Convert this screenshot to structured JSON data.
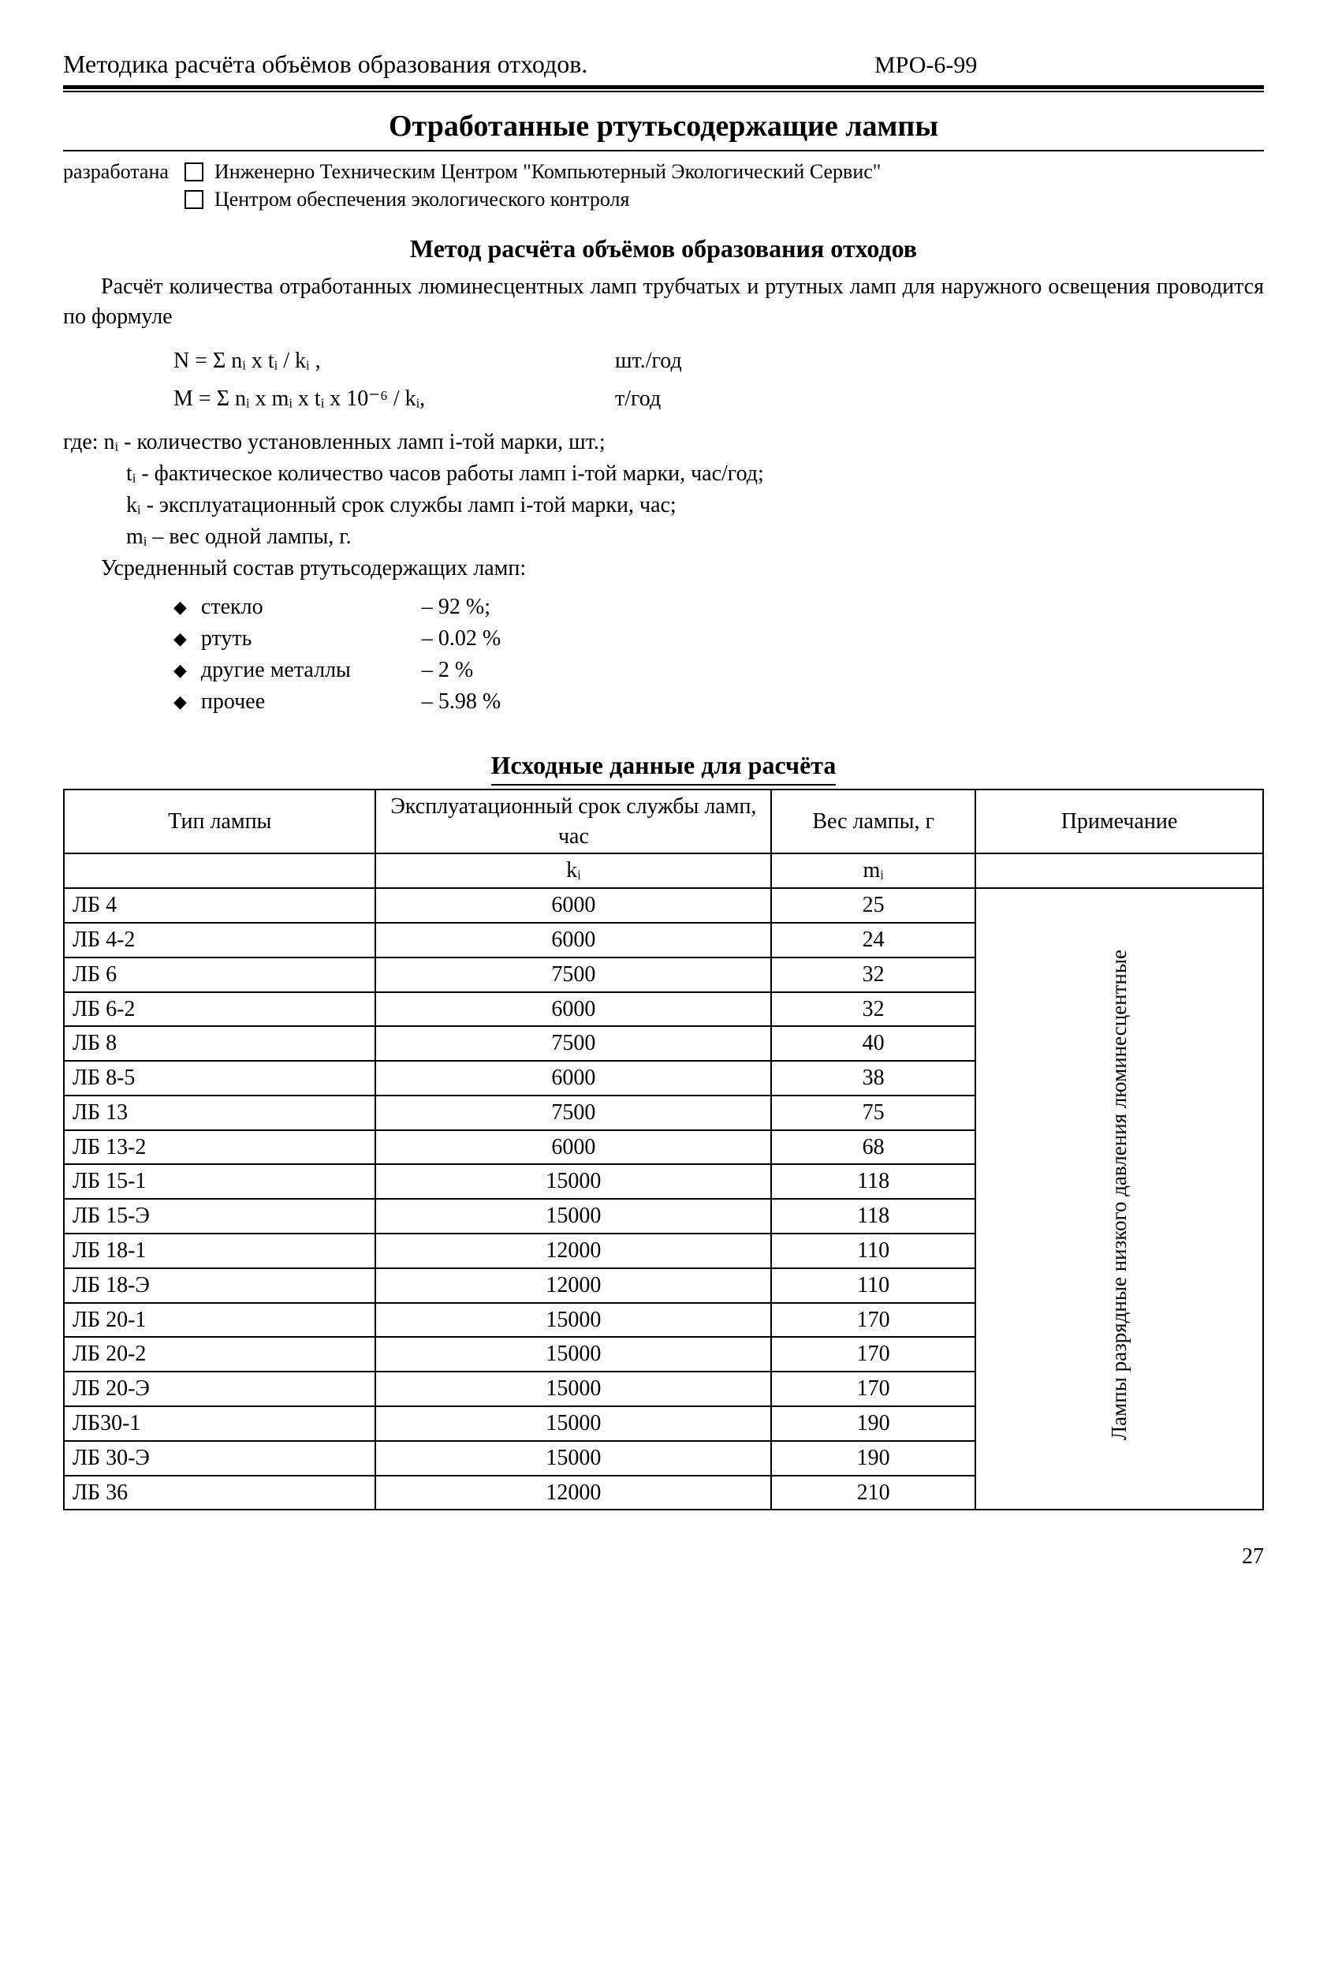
{
  "header": {
    "left": "Методика расчёта объёмов образования отходов.",
    "right": "МРО-6-99"
  },
  "title": "Отработанные ртутьсодержащие лампы",
  "developed": {
    "label": "разработана",
    "items": [
      "Инженерно Техническим Центром \"Компьютерный Экологический Сервис\"",
      "Центром обеспечения экологического контроля"
    ]
  },
  "method": {
    "title": "Метод расчёта объёмов образования отходов",
    "intro": "Расчёт количества отработанных люминесцентных ламп трубчатых и ртутных ламп для наружного освещения проводится по формуле",
    "formulas": [
      {
        "expr": "N = Σ nᵢ x tᵢ / kᵢ ,",
        "unit": "шт./год"
      },
      {
        "expr": "M = Σ nᵢ x mᵢ x tᵢ x 10⁻⁶ / kᵢ,",
        "unit": "т/год"
      }
    ],
    "where_lead": "где: nᵢ - количество установленных ламп i-той марки, шт.;",
    "where_lines": [
      "tᵢ - фактическое количество часов работы ламп i-той марки, час/год;",
      "kᵢ - эксплуатационный срок службы ламп i-той марки, час;",
      "mᵢ – вес одной лампы, г."
    ],
    "avg_lead": "Усредненный состав ртутьсодержащих ламп:",
    "composition": [
      {
        "name": "стекло",
        "val": "– 92 %;"
      },
      {
        "name": "ртуть",
        "val": "– 0.02 %"
      },
      {
        "name": "другие металлы",
        "val": "– 2 %"
      },
      {
        "name": "прочее",
        "val": "– 5.98 %"
      }
    ]
  },
  "table": {
    "title": "Исходные данные для расчёта",
    "headers": {
      "type": "Тип лампы",
      "life": "Эксплуатационный срок службы ламп, час",
      "weight": "Вес лампы, г",
      "note": "Примечание"
    },
    "symbols": {
      "life": "kᵢ",
      "weight": "mᵢ"
    },
    "note_text": "Лампы разрядные низкого давления люминесцентные",
    "rows": [
      {
        "type": "ЛБ 4",
        "life": "6000",
        "weight": "25"
      },
      {
        "type": "ЛБ 4-2",
        "life": "6000",
        "weight": "24"
      },
      {
        "type": "ЛБ 6",
        "life": "7500",
        "weight": "32"
      },
      {
        "type": "ЛБ 6-2",
        "life": "6000",
        "weight": "32"
      },
      {
        "type": "ЛБ 8",
        "life": "7500",
        "weight": "40"
      },
      {
        "type": "ЛБ 8-5",
        "life": "6000",
        "weight": "38"
      },
      {
        "type": "ЛБ 13",
        "life": "7500",
        "weight": "75"
      },
      {
        "type": "ЛБ 13-2",
        "life": "6000",
        "weight": "68"
      },
      {
        "type": "ЛБ 15-1",
        "life": "15000",
        "weight": "118"
      },
      {
        "type": "ЛБ 15-Э",
        "life": "15000",
        "weight": "118"
      },
      {
        "type": "ЛБ 18-1",
        "life": "12000",
        "weight": "110"
      },
      {
        "type": "ЛБ 18-Э",
        "life": "12000",
        "weight": "110"
      },
      {
        "type": "ЛБ 20-1",
        "life": "15000",
        "weight": "170"
      },
      {
        "type": "ЛБ 20-2",
        "life": "15000",
        "weight": "170"
      },
      {
        "type": "ЛБ 20-Э",
        "life": "15000",
        "weight": "170"
      },
      {
        "type": "ЛБ30-1",
        "life": "15000",
        "weight": "190"
      },
      {
        "type": "ЛБ 30-Э",
        "life": "15000",
        "weight": "190"
      },
      {
        "type": "ЛБ 36",
        "life": "12000",
        "weight": "210"
      }
    ]
  },
  "page_number": "27"
}
